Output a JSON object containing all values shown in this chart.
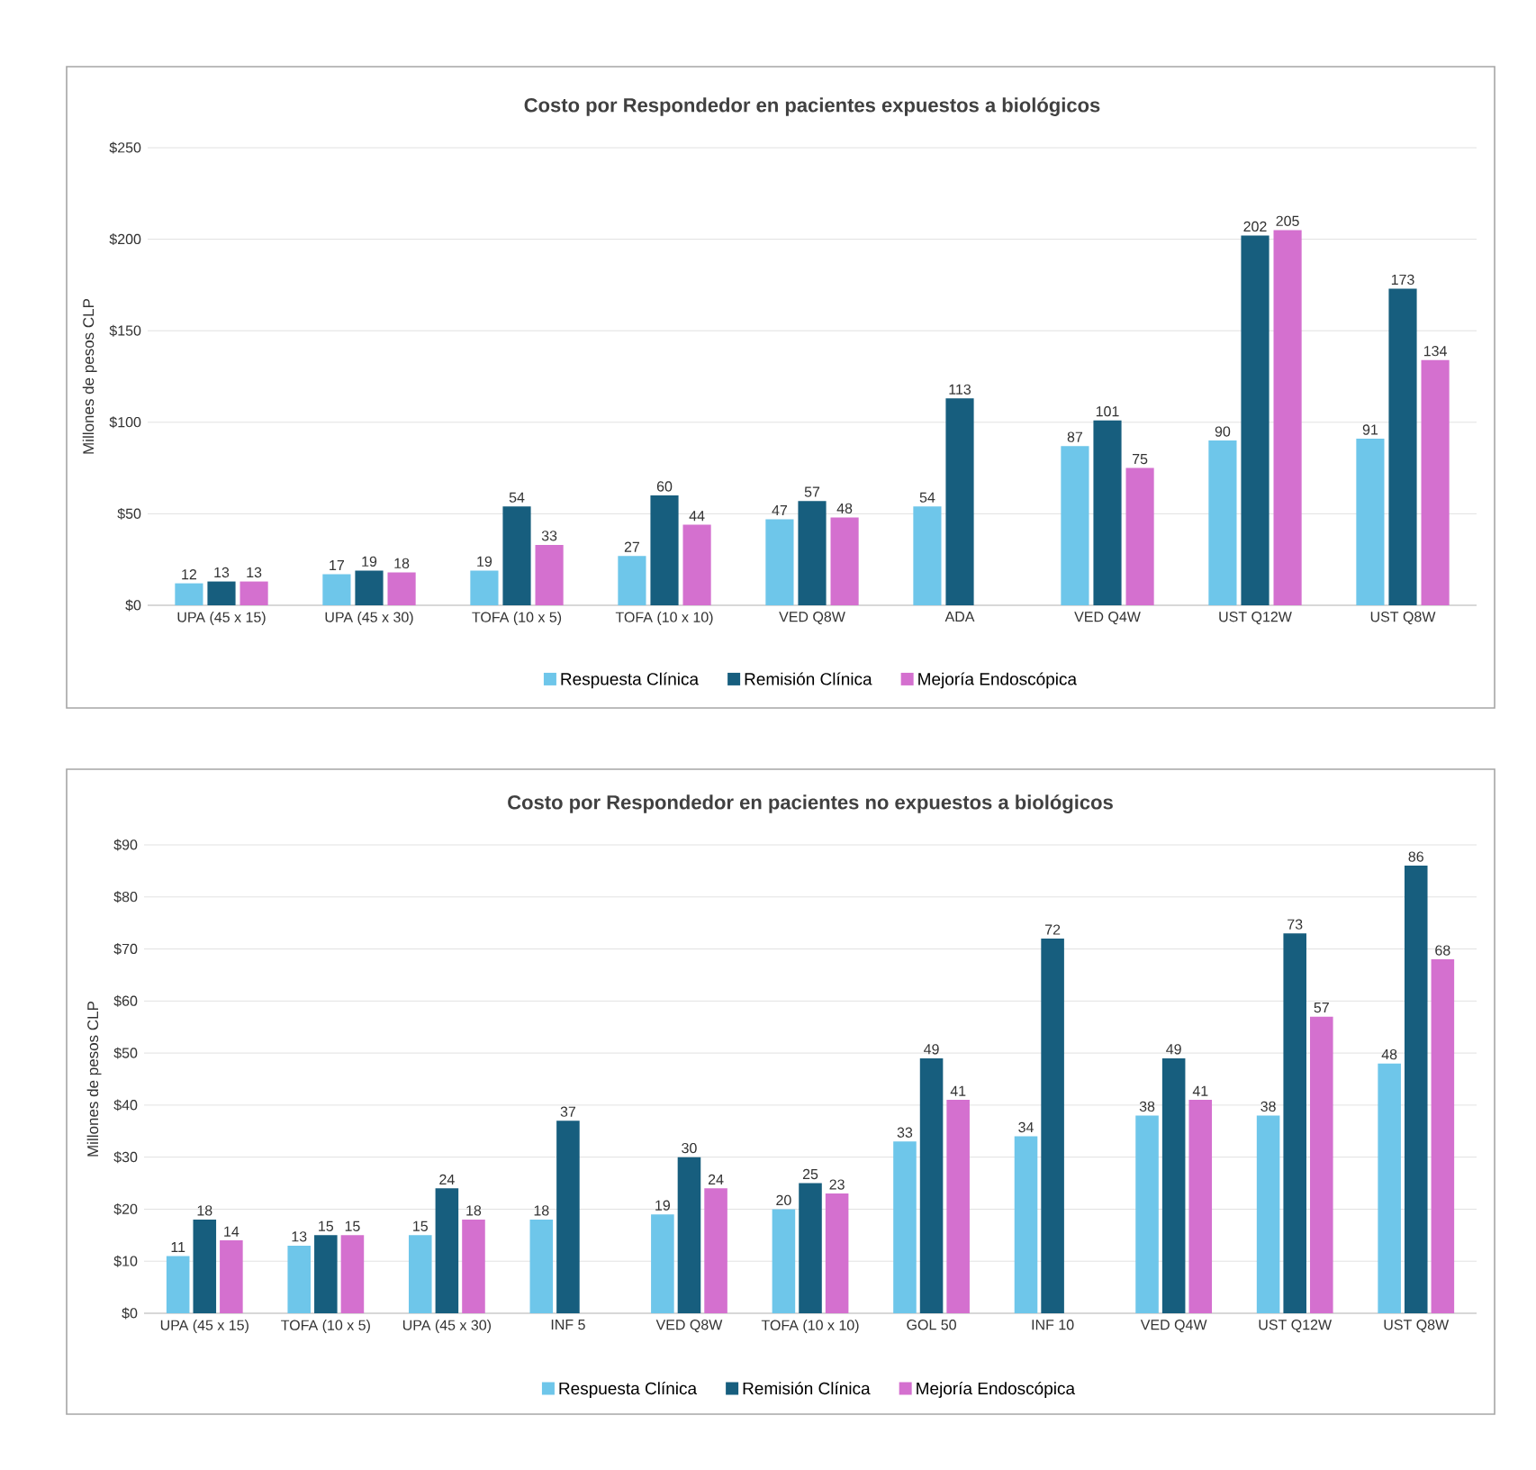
{
  "chart_data": [
    {
      "type": "bar",
      "title": "Costo por Respondedor en pacientes expuestos a biológicos",
      "ylabel": "Millones de pesos CLP",
      "categories": [
        "UPA (45 x 15)",
        "UPA (45 x 30)",
        "TOFA (10 x 5)",
        "TOFA (10 x 10)",
        "VED Q8W",
        "ADA",
        "VED Q4W",
        "UST Q12W",
        "UST Q8W"
      ],
      "series": [
        {
          "name": "Respuesta Clínica",
          "color": "#6ec6ea",
          "values": [
            12,
            17,
            19,
            27,
            47,
            54,
            87,
            90,
            91
          ]
        },
        {
          "name": "Remisión Clínica",
          "color": "#175e7e",
          "values": [
            13,
            19,
            54,
            60,
            57,
            113,
            101,
            202,
            173
          ]
        },
        {
          "name": "Mejoría Endoscópica",
          "color": "#d470cf",
          "values": [
            13,
            18,
            33,
            44,
            48,
            null,
            75,
            205,
            134
          ]
        }
      ],
      "ylim": [
        0,
        250
      ],
      "yticks": [
        {
          "value": 0,
          "label": "$0"
        },
        {
          "value": 50,
          "label": "$50"
        },
        {
          "value": 100,
          "label": "$100"
        },
        {
          "value": 150,
          "label": "$150"
        },
        {
          "value": 200,
          "label": "$200"
        },
        {
          "value": 250,
          "label": "$250"
        }
      ],
      "grid": "y",
      "legend": "bottom",
      "data_labels": true
    },
    {
      "type": "bar",
      "title": "Costo por Respondedor en pacientes no expuestos a biológicos",
      "ylabel": "Millones de pesos CLP",
      "categories": [
        "UPA (45 x 15)",
        "TOFA (10 x 5)",
        "UPA (45 x 30)",
        "INF 5",
        "VED Q8W",
        "TOFA (10 x 10)",
        "GOL 50",
        "INF 10",
        "VED Q4W",
        "UST Q12W",
        "UST Q8W"
      ],
      "series": [
        {
          "name": "Respuesta Clínica",
          "color": "#6ec6ea",
          "values": [
            11,
            13,
            15,
            18,
            19,
            20,
            33,
            34,
            38,
            38,
            48
          ]
        },
        {
          "name": "Remisión Clínica",
          "color": "#175e7e",
          "values": [
            18,
            15,
            24,
            37,
            30,
            25,
            49,
            72,
            49,
            73,
            86
          ]
        },
        {
          "name": "Mejoría Endoscópica",
          "color": "#d470cf",
          "values": [
            14,
            15,
            18,
            null,
            24,
            23,
            41,
            null,
            41,
            57,
            68
          ]
        }
      ],
      "ylim": [
        0,
        90
      ],
      "yticks": [
        {
          "value": 0,
          "label": "$0"
        },
        {
          "value": 10,
          "label": "$10"
        },
        {
          "value": 20,
          "label": "$20"
        },
        {
          "value": 30,
          "label": "$30"
        },
        {
          "value": 40,
          "label": "$40"
        },
        {
          "value": 50,
          "label": "$50"
        },
        {
          "value": 60,
          "label": "$60"
        },
        {
          "value": 70,
          "label": "$70"
        },
        {
          "value": 80,
          "label": "$80"
        },
        {
          "value": 90,
          "label": "$90"
        }
      ],
      "grid": "y",
      "legend": "bottom",
      "data_labels": true
    }
  ]
}
